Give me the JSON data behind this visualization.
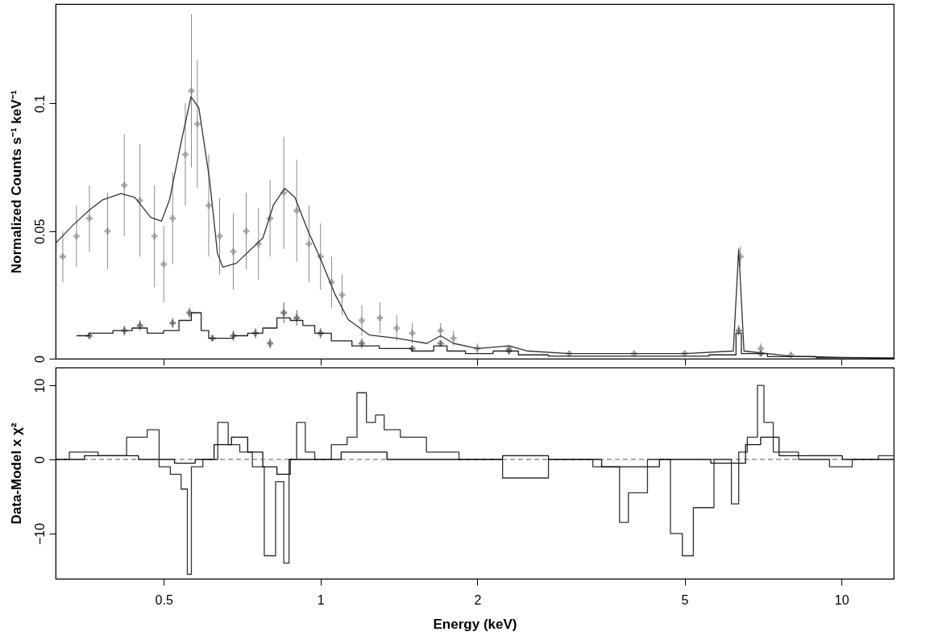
{
  "chart_data": [
    {
      "type": "line",
      "ylabel": "Normalized Counts s⁻¹ keV⁻¹",
      "log": "x",
      "grid": false,
      "legend": false,
      "tick_labels": "y",
      "xlim": [
        0.31,
        12.6
      ],
      "ylim": [
        0,
        0.139
      ],
      "xticks": [
        0.5,
        1,
        2,
        5,
        10
      ],
      "yticks": [
        0,
        0.05,
        0.1
      ],
      "series": [
        {
          "type": "scatter",
          "color": "#8a8a8a",
          "marker": "cross",
          "x": [
            0.32,
            0.34,
            0.36,
            0.39,
            0.42,
            0.45,
            0.48,
            0.5,
            0.52,
            0.55,
            0.565,
            0.58,
            0.61,
            0.64,
            0.68,
            0.72,
            0.76,
            0.8,
            0.85,
            0.9,
            0.95,
            1.0,
            1.05,
            1.1,
            1.2,
            1.3,
            1.4,
            1.5,
            1.7,
            1.8,
            2.0,
            2.3,
            3.0,
            4.0,
            5.0,
            6.4,
            7.0,
            8.0
          ],
          "values": [
            0.04,
            0.048,
            0.055,
            0.05,
            0.068,
            0.062,
            0.048,
            0.037,
            0.055,
            0.08,
            0.105,
            0.092,
            0.06,
            0.048,
            0.042,
            0.05,
            0.045,
            0.055,
            0.065,
            0.058,
            0.045,
            0.04,
            0.03,
            0.025,
            0.015,
            0.016,
            0.012,
            0.01,
            0.011,
            0.008,
            0.004,
            0.004,
            0.002,
            0.002,
            0.002,
            0.04,
            0.004,
            0.0015
          ],
          "errors": [
            0.01,
            0.012,
            0.013,
            0.015,
            0.02,
            0.022,
            0.02,
            0.015,
            0.018,
            0.02,
            0.03,
            0.025,
            0.02,
            0.015,
            0.015,
            0.015,
            0.014,
            0.015,
            0.022,
            0.02,
            0.015,
            0.013,
            0.01,
            0.008,
            0.006,
            0.006,
            0.005,
            0.004,
            0.003,
            0.003,
            0.002,
            0.001,
            0.001,
            0.0008,
            0.0008,
            0.004,
            0.002,
            0.001
          ]
        },
        {
          "type": "line",
          "color": "#333333",
          "x": [
            0.31,
            0.335,
            0.36,
            0.382,
            0.414,
            0.44,
            0.472,
            0.495,
            0.513,
            0.539,
            0.564,
            0.584,
            0.612,
            0.634,
            0.649,
            0.689,
            0.775,
            0.812,
            0.853,
            0.893,
            0.945,
            1.004,
            1.065,
            1.13,
            1.24,
            1.4,
            1.6,
            1.7,
            1.8,
            2.0,
            2.3,
            2.5,
            3.0,
            4.0,
            5.0,
            6.2,
            6.35,
            6.5,
            8.0,
            10.0,
            12.6
          ],
          "values": [
            0.0452,
            0.0524,
            0.0583,
            0.0623,
            0.0647,
            0.0632,
            0.0554,
            0.0539,
            0.0623,
            0.0841,
            0.1027,
            0.0982,
            0.0704,
            0.0413,
            0.0359,
            0.0374,
            0.0473,
            0.0602,
            0.0668,
            0.0632,
            0.0503,
            0.0383,
            0.0254,
            0.0153,
            0.0093,
            0.008,
            0.006,
            0.009,
            0.006,
            0.004,
            0.005,
            0.003,
            0.002,
            0.002,
            0.002,
            0.003,
            0.043,
            0.003,
            0.001,
            0.0005,
            0.0003
          ]
        },
        {
          "type": "scatter",
          "color": "#555555",
          "marker": "cross",
          "x": [
            0.36,
            0.42,
            0.45,
            0.52,
            0.56,
            0.62,
            0.68,
            0.75,
            0.8,
            0.85,
            0.9,
            1.0,
            1.2,
            1.5,
            1.7,
            2.3,
            6.35,
            7.0
          ],
          "values": [
            0.009,
            0.011,
            0.013,
            0.014,
            0.018,
            0.008,
            0.009,
            0.01,
            0.006,
            0.018,
            0.016,
            0.01,
            0.006,
            0.004,
            0.006,
            0.003,
            0.011,
            0.002
          ],
          "errors": [
            0.001,
            0.002,
            0.002,
            0.002,
            0.002,
            0.001,
            0.002,
            0.002,
            0.002,
            0.004,
            0.003,
            0.002,
            0.002,
            0.001,
            0.001,
            0.001,
            0.002,
            0.001
          ]
        },
        {
          "type": "step",
          "color": "#222222",
          "x": [
            0.34,
            0.38,
            0.42,
            0.45,
            0.48,
            0.52,
            0.55,
            0.58,
            0.6,
            0.62,
            0.66,
            0.7,
            0.75,
            0.8,
            0.85,
            0.9,
            0.95,
            1.0,
            1.1,
            1.2,
            1.4,
            1.6,
            1.7,
            1.8,
            2.0,
            2.3,
            2.5,
            3.0,
            4.0,
            5.0,
            6.2,
            6.35,
            6.5,
            8.0,
            10.0,
            12.6
          ],
          "values": [
            0.009,
            0.01,
            0.011,
            0.012,
            0.01,
            0.011,
            0.015,
            0.018,
            0.011,
            0.008,
            0.008,
            0.009,
            0.01,
            0.012,
            0.016,
            0.015,
            0.013,
            0.01,
            0.007,
            0.005,
            0.004,
            0.003,
            0.005,
            0.003,
            0.002,
            0.003,
            0.0015,
            0.001,
            0.001,
            0.001,
            0.0015,
            0.01,
            0.002,
            0.0008,
            0.0004,
            0.0002
          ]
        }
      ]
    },
    {
      "type": "step",
      "xlabel": "Energy (keV)",
      "ylabel": "Data-Model x χ²",
      "log": "x",
      "grid": false,
      "legend": false,
      "xlim": [
        0.31,
        12.6
      ],
      "ylim": [
        -16.1,
        12.4
      ],
      "xticks": [
        0.5,
        1,
        2,
        5,
        10
      ],
      "yticks": [
        10,
        0,
        -10
      ],
      "ref_lines": [
        {
          "axis": "y",
          "value": 0,
          "line_style": "dashed",
          "color": "#555555"
        }
      ],
      "series": [
        {
          "color": "#333333",
          "x": [
            0.31,
            0.35,
            0.4,
            0.45,
            0.48,
            0.5,
            0.53,
            0.55,
            0.56,
            0.57,
            0.62,
            0.65,
            0.68,
            0.72,
            0.76,
            0.8,
            0.84,
            0.86,
            0.88,
            0.92,
            0.95,
            1.0,
            1.1,
            1.15,
            1.2,
            1.25,
            1.3,
            1.35,
            1.5,
            1.7,
            2.0,
            2.5,
            3.0,
            3.7,
            3.8,
            4.0,
            4.5,
            4.9,
            5.0,
            5.4,
            6.0,
            6.3,
            6.4,
            6.8,
            7.0,
            7.2,
            7.6,
            9.0,
            10.0,
            11.0,
            12.6
          ],
          "values": [
            0,
            1,
            0.5,
            3,
            4,
            -1,
            -2,
            -4,
            -15.5,
            -1,
            0,
            5,
            2,
            1,
            -1,
            -13,
            -3,
            -14,
            0,
            5,
            1,
            0,
            2,
            3,
            9,
            5,
            6,
            4,
            3,
            1,
            0,
            -2.5,
            0,
            -1,
            -8.5,
            -4.5,
            0,
            -10,
            -13,
            -6.5,
            0,
            -6,
            1,
            3,
            10,
            5,
            1,
            0,
            -1,
            0,
            0.5
          ]
        },
        {
          "color": "#111111",
          "x": [
            0.31,
            0.4,
            0.5,
            0.55,
            0.6,
            0.65,
            0.7,
            0.75,
            0.8,
            0.85,
            0.9,
            1.0,
            1.2,
            1.5,
            2.0,
            2.5,
            3.0,
            4.0,
            5.0,
            6.3,
            6.8,
            7.2,
            8.0,
            12.6
          ],
          "values": [
            0,
            0.5,
            0,
            -0.5,
            0,
            2,
            3,
            1,
            -1,
            -2,
            0,
            0,
            1,
            0,
            0,
            0.5,
            0,
            -1,
            0,
            -0.5,
            2,
            3,
            0.5,
            0
          ]
        }
      ]
    }
  ]
}
